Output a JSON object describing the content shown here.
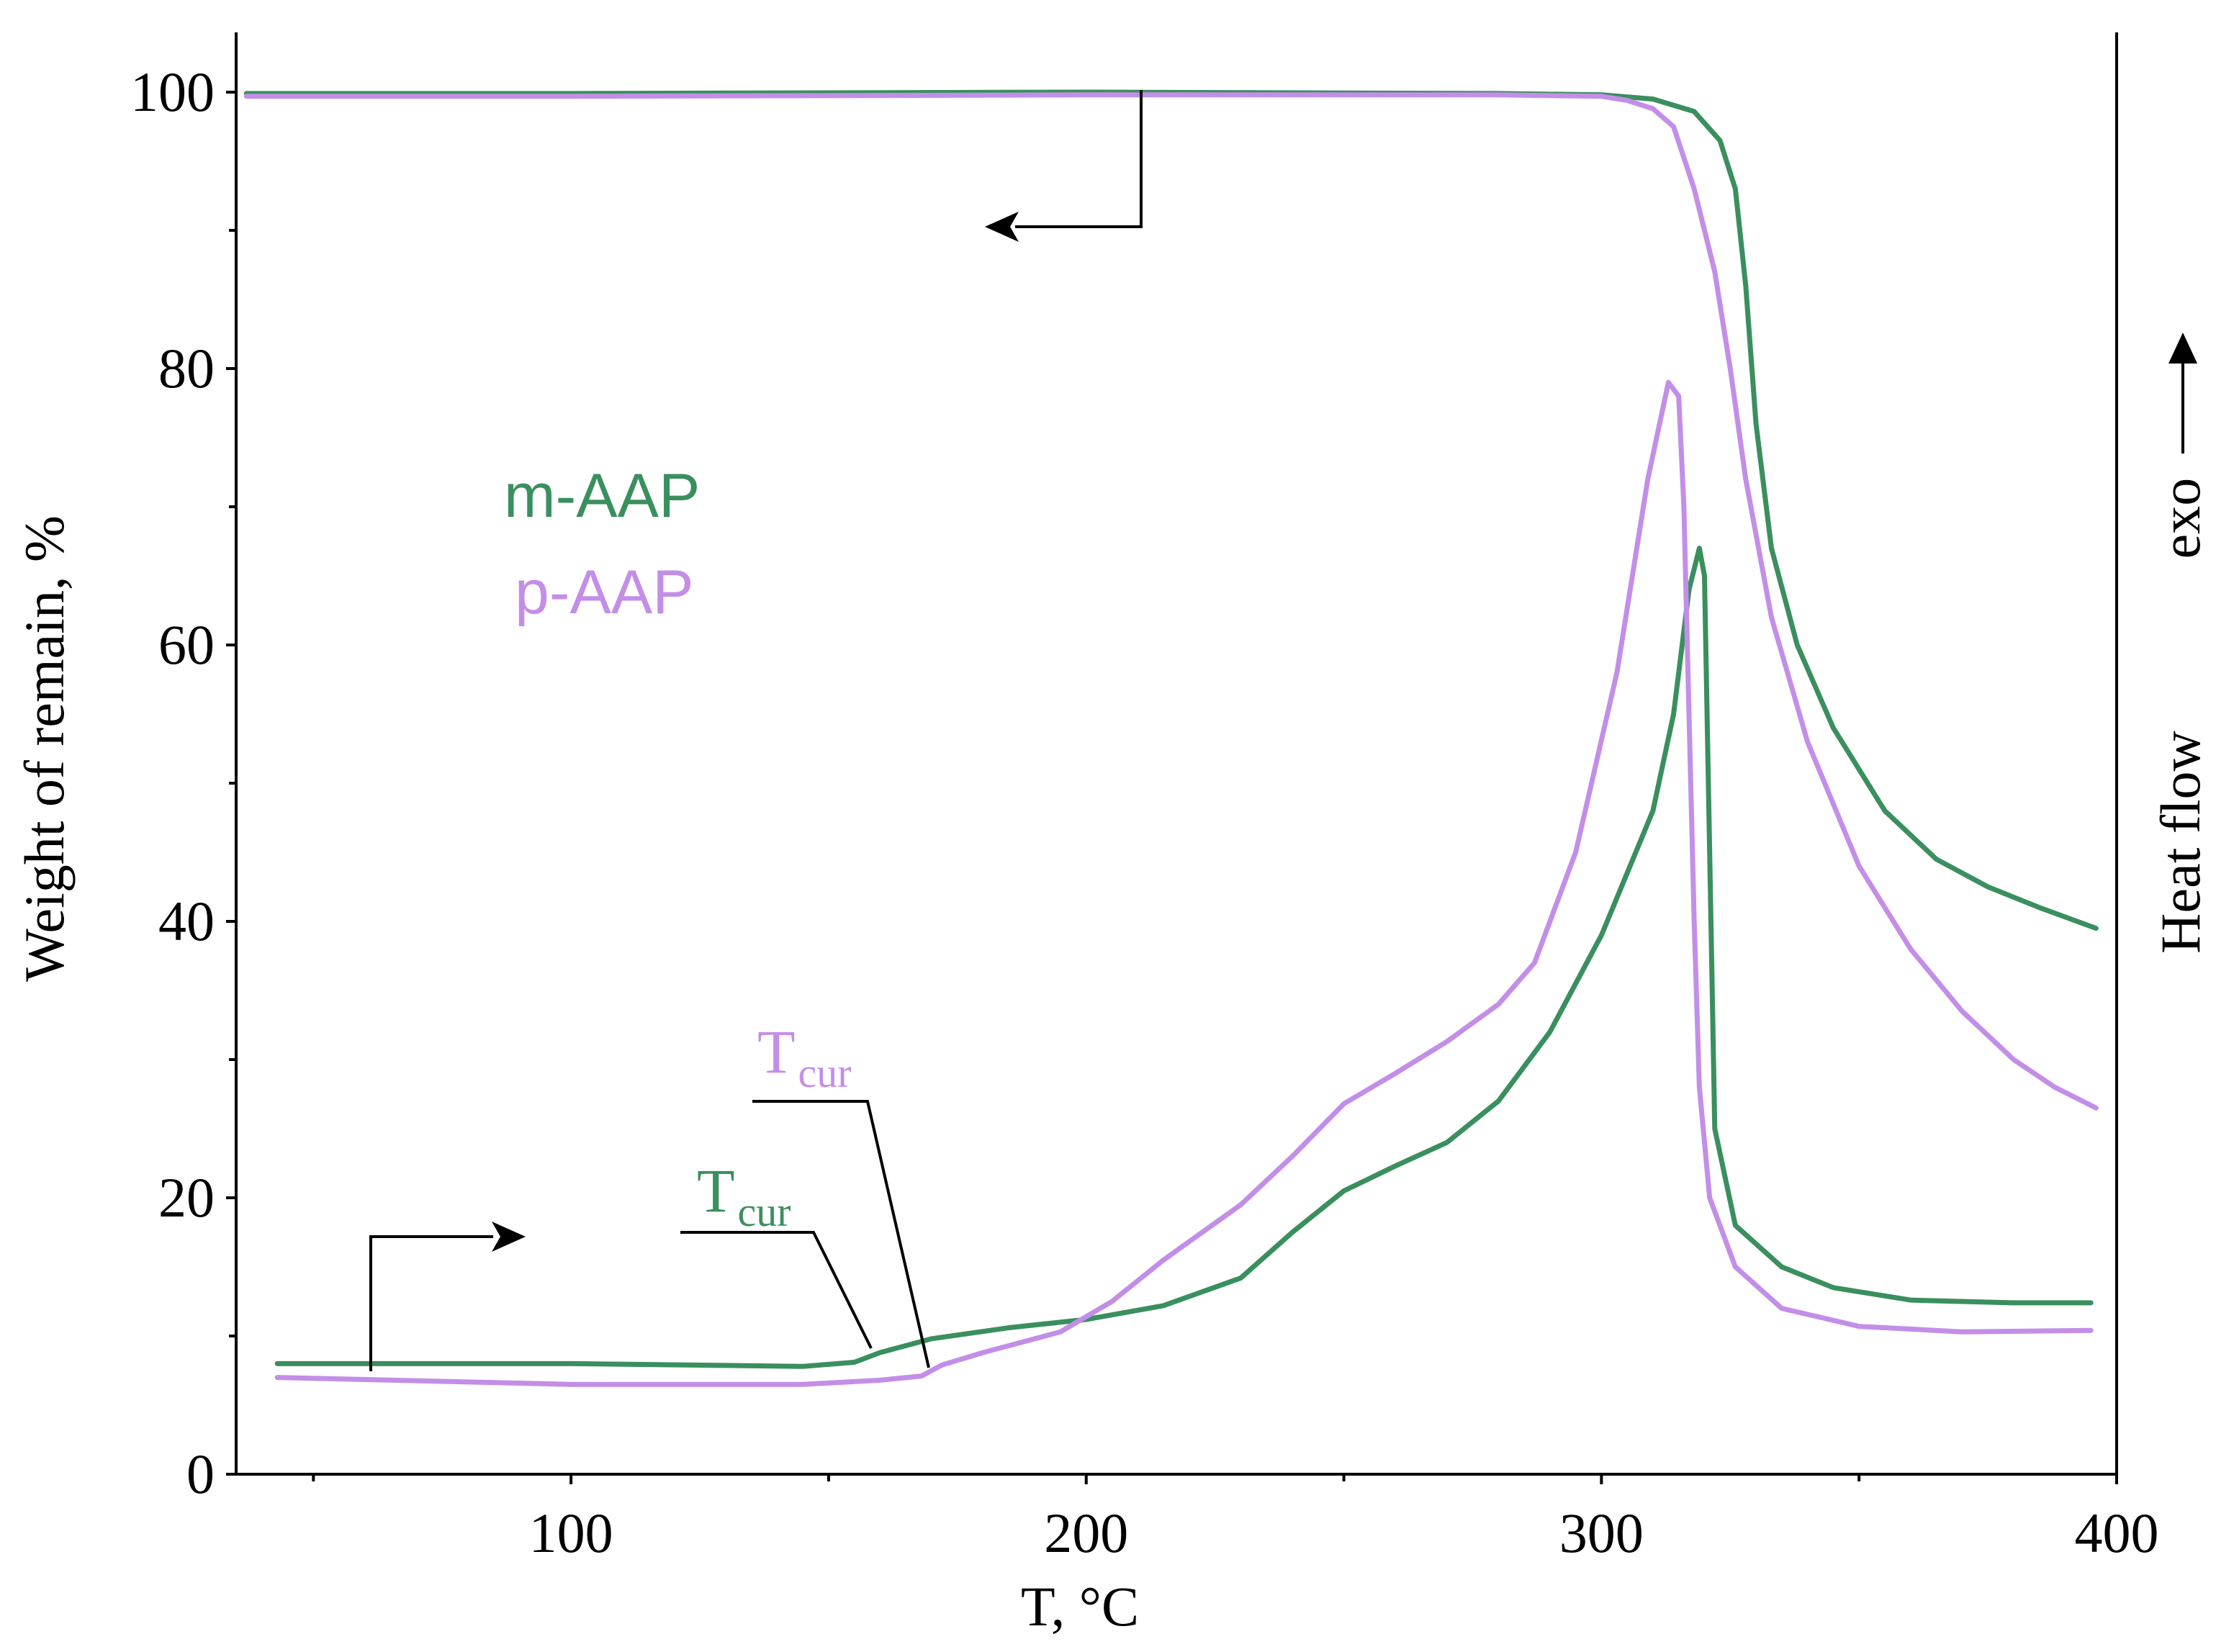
{
  "chart_data": {
    "type": "line",
    "xlabel": "T, °C",
    "ylabel": "Weight of remain, %",
    "y2label": "Heat flow",
    "y2_direction_label": "exo",
    "xlim": [
      35,
      400
    ],
    "ylim": [
      0,
      100
    ],
    "x_ticks": [
      {
        "value": 100,
        "label": "100"
      },
      {
        "value": 200,
        "label": "200"
      },
      {
        "value": 300,
        "label": "300"
      },
      {
        "value": 400,
        "label": "400"
      }
    ],
    "x_minor_ticks": [
      50,
      150,
      250,
      350
    ],
    "y_ticks": [
      {
        "value": 0,
        "label": "0"
      },
      {
        "value": 20,
        "label": "20"
      },
      {
        "value": 40,
        "label": "40"
      },
      {
        "value": 60,
        "label": "60"
      },
      {
        "value": 80,
        "label": "80"
      },
      {
        "value": 100,
        "label": "100"
      }
    ],
    "y_minor_ticks": [
      10,
      30,
      50,
      70,
      90
    ],
    "legend": [
      {
        "name": "m-AAP",
        "color": "#3a8f5e"
      },
      {
        "name": "p-AAP",
        "color": "#c38ee8"
      }
    ],
    "series": [
      {
        "name": "m-AAP TGA",
        "group": "m-AAP",
        "color": "#3a8f5e",
        "axis": "weight",
        "points": [
          [
            37,
            99.9
          ],
          [
            100,
            99.9
          ],
          [
            200,
            100
          ],
          [
            280,
            99.9
          ],
          [
            300,
            99.8
          ],
          [
            310,
            99.5
          ],
          [
            318,
            98.6
          ],
          [
            323,
            96.5
          ],
          [
            326,
            93
          ],
          [
            328,
            86
          ],
          [
            330,
            76
          ],
          [
            333,
            67
          ],
          [
            338,
            60
          ],
          [
            345,
            54
          ],
          [
            355,
            48
          ],
          [
            365,
            44.5
          ],
          [
            375,
            42.5
          ],
          [
            385,
            41
          ],
          [
            396,
            39.5
          ]
        ]
      },
      {
        "name": "p-AAP TGA",
        "group": "p-AAP",
        "color": "#c38ee8",
        "axis": "weight",
        "points": [
          [
            37,
            99.7
          ],
          [
            100,
            99.7
          ],
          [
            200,
            99.8
          ],
          [
            280,
            99.8
          ],
          [
            300,
            99.7
          ],
          [
            305,
            99.4
          ],
          [
            310,
            98.8
          ],
          [
            314,
            97.5
          ],
          [
            318,
            93
          ],
          [
            322,
            87
          ],
          [
            325,
            80
          ],
          [
            328,
            72
          ],
          [
            333,
            62
          ],
          [
            340,
            53
          ],
          [
            350,
            44
          ],
          [
            360,
            38
          ],
          [
            370,
            33.5
          ],
          [
            380,
            30
          ],
          [
            388,
            28
          ],
          [
            396,
            26.5
          ]
        ]
      },
      {
        "name": "m-AAP DSC",
        "group": "m-AAP",
        "color": "#3a8f5e",
        "axis": "heat_flow",
        "points": [
          [
            43,
            8
          ],
          [
            100,
            8
          ],
          [
            145,
            7.8
          ],
          [
            155,
            8.1
          ],
          [
            160,
            8.8
          ],
          [
            170,
            9.8
          ],
          [
            185,
            10.6
          ],
          [
            200,
            11.2
          ],
          [
            215,
            12.2
          ],
          [
            230,
            14.2
          ],
          [
            240,
            17.5
          ],
          [
            250,
            20.5
          ],
          [
            260,
            22.3
          ],
          [
            270,
            24
          ],
          [
            280,
            27
          ],
          [
            290,
            32
          ],
          [
            300,
            39
          ],
          [
            310,
            48
          ],
          [
            314,
            55
          ],
          [
            317,
            64
          ],
          [
            319,
            67
          ],
          [
            320,
            65
          ],
          [
            321,
            45
          ],
          [
            322,
            25
          ],
          [
            326,
            18
          ],
          [
            335,
            15
          ],
          [
            345,
            13.5
          ],
          [
            360,
            12.6
          ],
          [
            380,
            12.4
          ],
          [
            395,
            12.4
          ]
        ]
      },
      {
        "name": "p-AAP DSC",
        "group": "p-AAP",
        "color": "#c38ee8",
        "axis": "heat_flow",
        "points": [
          [
            43,
            7
          ],
          [
            100,
            6.5
          ],
          [
            145,
            6.5
          ],
          [
            160,
            6.8
          ],
          [
            168,
            7.1
          ],
          [
            172,
            7.9
          ],
          [
            180,
            8.8
          ],
          [
            195,
            10.3
          ],
          [
            205,
            12.5
          ],
          [
            215,
            15.5
          ],
          [
            230,
            19.5
          ],
          [
            240,
            23
          ],
          [
            250,
            26.8
          ],
          [
            260,
            29
          ],
          [
            270,
            31.3
          ],
          [
            280,
            34
          ],
          [
            287,
            37
          ],
          [
            295,
            45
          ],
          [
            303,
            58
          ],
          [
            309,
            72
          ],
          [
            313,
            79
          ],
          [
            315,
            78
          ],
          [
            316,
            70
          ],
          [
            317,
            55
          ],
          [
            318,
            40
          ],
          [
            319,
            28
          ],
          [
            321,
            20
          ],
          [
            326,
            15
          ],
          [
            335,
            12
          ],
          [
            350,
            10.7
          ],
          [
            370,
            10.3
          ],
          [
            395,
            10.4
          ]
        ]
      }
    ],
    "annotations": [
      {
        "text": "T",
        "subscript": "cur",
        "series": "p-AAP",
        "color": "#c38ee8"
      },
      {
        "text": "T",
        "subscript": "cur",
        "series": "m-AAP",
        "color": "#3a8f5e"
      }
    ],
    "axis_direction_arrows": [
      {
        "curve": "TGA",
        "points_to": "left axis"
      },
      {
        "curve": "DSC",
        "points_to": "right axis"
      }
    ]
  }
}
